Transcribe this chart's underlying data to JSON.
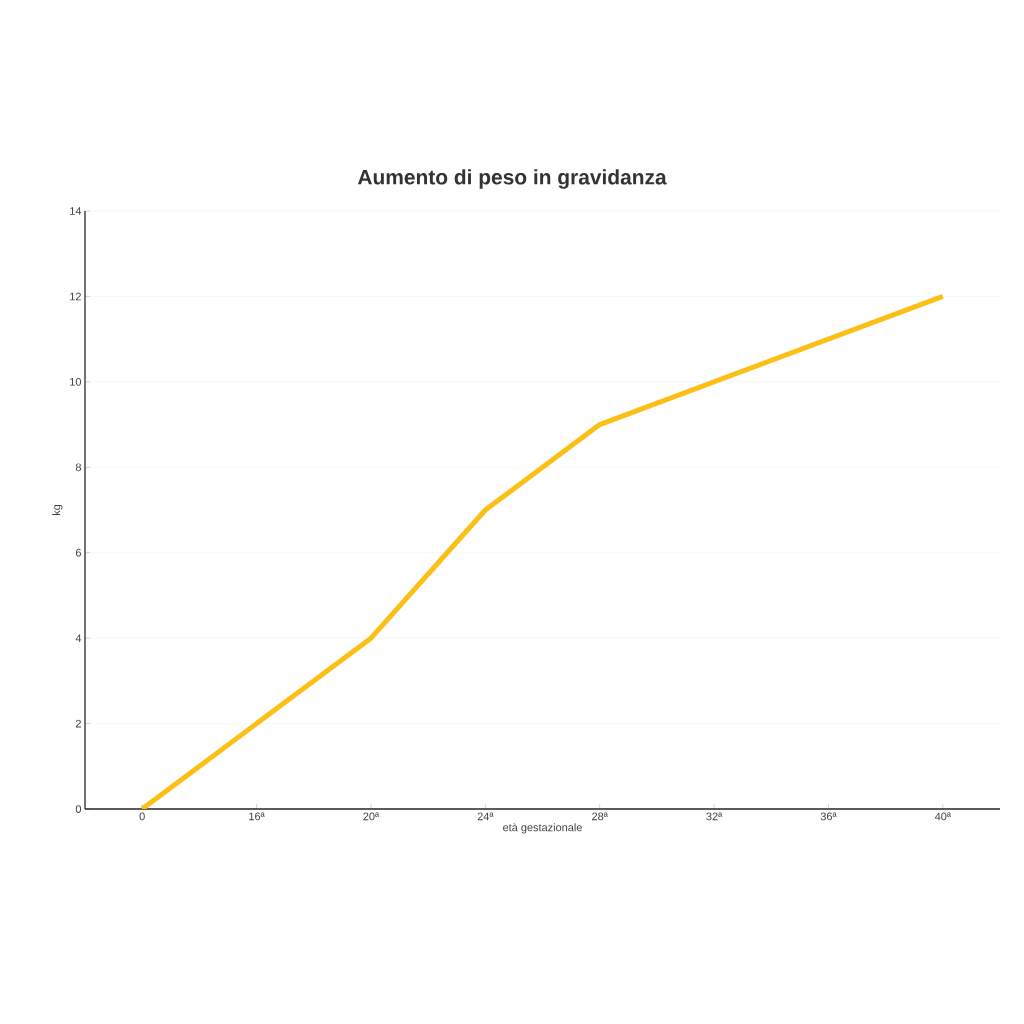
{
  "chart_data": {
    "type": "line",
    "title": "Aumento di peso in gravidanza",
    "xlabel": "età gestazionale",
    "ylabel": "kg",
    "categories": [
      "0",
      "16ª",
      "20ª",
      "24ª",
      "28ª",
      "32ª",
      "36ª",
      "40ª"
    ],
    "values": [
      0,
      2,
      4,
      7,
      9,
      10,
      11,
      12
    ],
    "color": "#fbbf16",
    "ylim": [
      0,
      14
    ],
    "yticks": [
      0,
      2,
      4,
      6,
      8,
      10,
      12,
      14
    ],
    "grid": "y",
    "marker": "none",
    "line_style": "solid"
  }
}
